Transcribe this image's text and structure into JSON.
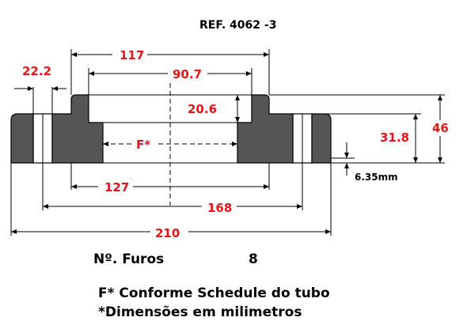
{
  "title": "REF. 4062 -3",
  "dimensions": {
    "d_22_2": "22.2",
    "d_117": "117",
    "d_90_7": "90.7",
    "d_20_6": "20.6",
    "d_f": "F*",
    "d_31_8": "31.8",
    "d_46": "46",
    "d_6_35": "6.35mm",
    "d_127": "127",
    "d_168": "168",
    "d_210": "210"
  },
  "holes": {
    "label": "Nº. Furos",
    "value": "8"
  },
  "notes": [
    "F* Conforme Schedule do tubo",
    "*Dimensões em milimetros"
  ],
  "colors": {
    "section_fill": "#555555",
    "dimension_text": "#e8141c"
  }
}
